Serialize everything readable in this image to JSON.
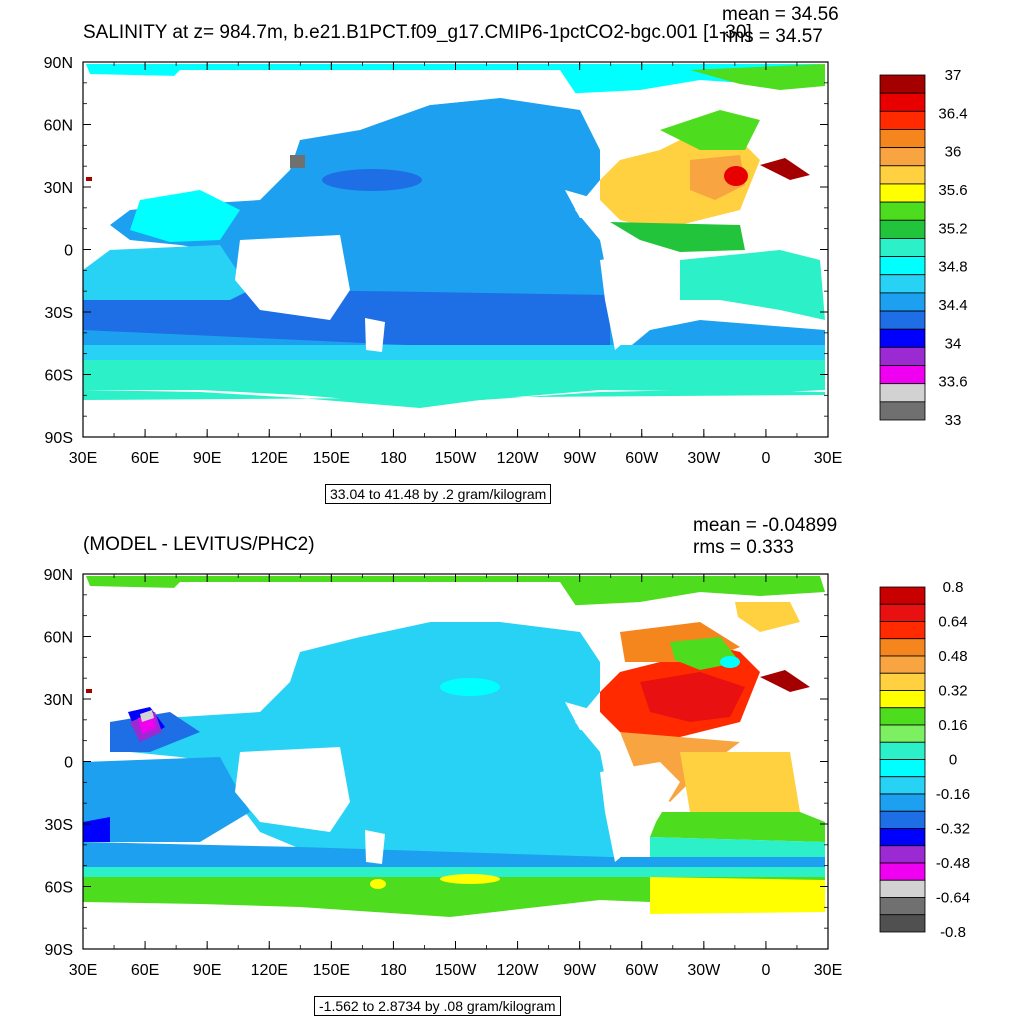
{
  "top": {
    "title": "SALINITY at z= 984.7m, b.e21.B1PCT.f09_g17.CMIP6-1pctCO2-bgc.001 [1-30]",
    "mean": "mean = 34.56",
    "rms": "rms = 34.57",
    "range_caption": "33.04 to 41.48 by .2 gram/kilogram",
    "colorbar_labels": [
      "37",
      "36.4",
      "36",
      "35.6",
      "35.2",
      "34.8",
      "34.4",
      "34",
      "33.6",
      "33"
    ],
    "colorbar_colors": [
      "#a50000",
      "#e80000",
      "#ff2a00",
      "#f5861e",
      "#f8a440",
      "#ffd040",
      "#ffff00",
      "#4ddc1e",
      "#22c43c",
      "#2cf0c8",
      "#00ffff",
      "#28d2f5",
      "#1ea0f0",
      "#1e6ee6",
      "#0000ff",
      "#9b2ad2",
      "#f000f0",
      "#d2d2d2",
      "#707070"
    ]
  },
  "bottom": {
    "title": "(MODEL - LEVITUS/PHC2)",
    "mean": "mean = -0.04899",
    "rms": "rms = 0.333",
    "range_caption": "-1.562 to 2.8734 by .08 gram/kilogram",
    "colorbar_labels": [
      "0.8",
      "0.64",
      "0.48",
      "0.32",
      "0.16",
      "0",
      "-0.16",
      "-0.32",
      "-0.48",
      "-0.64",
      "-0.8"
    ],
    "colorbar_colors": [
      "#c80000",
      "#e81010",
      "#ff2a00",
      "#f5861e",
      "#f8a440",
      "#ffd040",
      "#ffff00",
      "#4ddc1e",
      "#7cf060",
      "#2cf0c8",
      "#00ffff",
      "#28d2f5",
      "#1ea0f0",
      "#1e6ee6",
      "#0000ff",
      "#9b2ad2",
      "#f000f0",
      "#d2d2d2",
      "#707070",
      "#505050"
    ]
  },
  "axes": {
    "lat_labels": [
      "90N",
      "60N",
      "30N",
      "0",
      "30S",
      "60S",
      "90S"
    ],
    "lon_labels": [
      "30E",
      "60E",
      "90E",
      "120E",
      "150E",
      "180",
      "150W",
      "120W",
      "90W",
      "60W",
      "30W",
      "0",
      "30E"
    ]
  },
  "colors": {
    "land": "#ffffff",
    "frame": "#000000"
  }
}
